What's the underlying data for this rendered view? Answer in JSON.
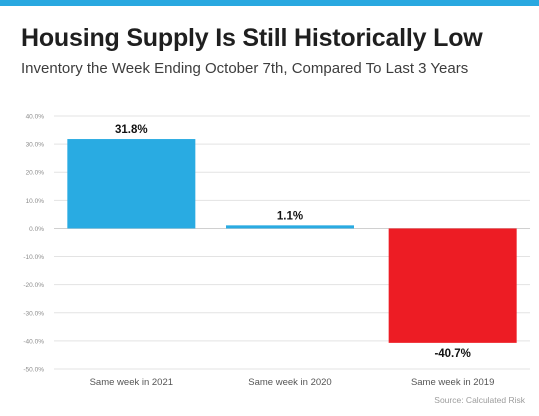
{
  "header": {
    "title": "Housing Supply Is Still Historically Low",
    "subtitle": "Inventory the Week Ending October 7th, Compared To Last 3 Years"
  },
  "colors": {
    "top_bar": "#29a8e0",
    "grid": "#e3e3e3",
    "zero_line": "#d0d0d0",
    "tick_text": "#8c8c8c",
    "category_text": "#555555",
    "data_label": "#111111",
    "bar_2021": "#29abe2",
    "bar_2020": "#29abe2",
    "bar_2019": "#ed1c24"
  },
  "chart_data": {
    "type": "bar",
    "categories": [
      "Same week in 2021",
      "Same week in 2020",
      "Same week in 2019"
    ],
    "values": [
      31.8,
      1.1,
      -40.7
    ],
    "data_labels": [
      "31.8%",
      "1.1%",
      "-40.7%"
    ],
    "y_ticks": [
      "40.0%",
      "30.0%",
      "20.0%",
      "10.0%",
      "0.0%",
      "-10.0%",
      "-20.0%",
      "-30.0%",
      "-40.0%",
      "-50.0%"
    ],
    "y_tick_values": [
      40,
      30,
      20,
      10,
      0,
      -10,
      -20,
      -30,
      -40,
      -50
    ],
    "ylim": [
      -50,
      40
    ],
    "grid": true,
    "legend": "none",
    "title": "",
    "xlabel": "",
    "ylabel": "",
    "source": "Source: Calculated Risk"
  }
}
